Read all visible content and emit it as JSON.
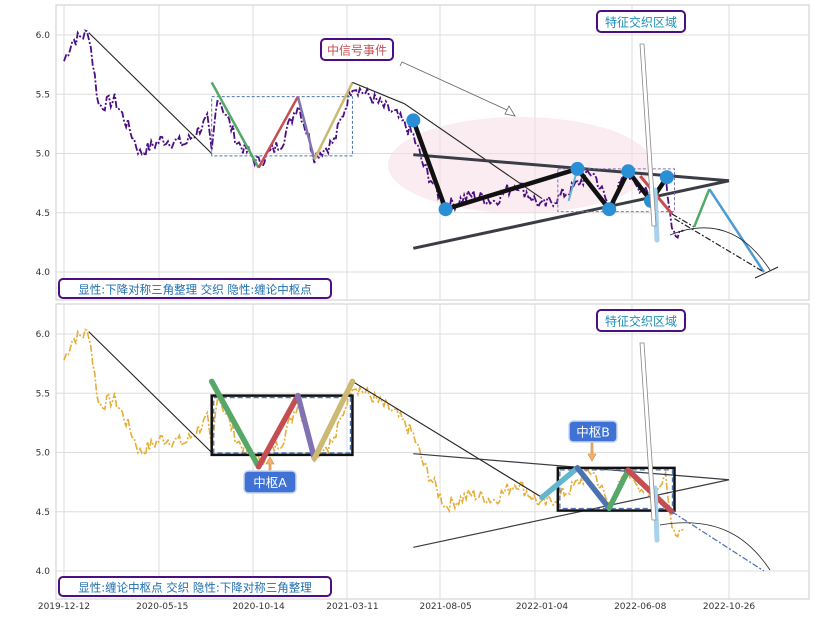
{
  "chart_data": [
    {
      "type": "line",
      "panel": "top",
      "ylim": [
        3.8,
        6.25
      ],
      "yticks": [
        "6.0",
        "5.5",
        "5.0",
        "4.5",
        "4.0"
      ],
      "grid": true,
      "series_colors": {
        "price": "#4b0f82"
      },
      "price_keypoints": [
        [
          "2019-12-12",
          5.78
        ],
        [
          "2019-12-25",
          5.95
        ],
        [
          "2020-01-20",
          6.02
        ],
        [
          "2020-02-05",
          5.4
        ],
        [
          "2020-03-01",
          5.45
        ],
        [
          "2020-03-25",
          5.2
        ],
        [
          "2020-04-10",
          5.0
        ],
        [
          "2020-05-15",
          5.12
        ],
        [
          "2020-06-20",
          5.08
        ],
        [
          "2020-07-25",
          5.28
        ],
        [
          "2020-08-01",
          5.0
        ],
        [
          "2020-08-10",
          5.5
        ],
        [
          "2020-09-10",
          5.1
        ],
        [
          "2020-10-14",
          4.92
        ],
        [
          "2020-11-20",
          5.1
        ],
        [
          "2020-12-15",
          5.42
        ],
        [
          "2021-01-10",
          4.98
        ],
        [
          "2021-02-10",
          5.1
        ],
        [
          "2021-03-11",
          5.58
        ],
        [
          "2021-04-15",
          5.45
        ],
        [
          "2021-05-20",
          5.32
        ],
        [
          "2021-06-15",
          5.15
        ],
        [
          "2021-07-01",
          4.9
        ],
        [
          "2021-08-05",
          4.55
        ],
        [
          "2021-09-15",
          4.65
        ],
        [
          "2021-10-20",
          4.6
        ],
        [
          "2021-11-25",
          4.75
        ],
        [
          "2022-01-04",
          4.55
        ],
        [
          "2022-02-20",
          4.7
        ],
        [
          "2022-03-25",
          4.85
        ],
        [
          "2022-04-20",
          4.55
        ],
        [
          "2022-05-20",
          4.85
        ],
        [
          "2022-06-25",
          4.6
        ],
        [
          "2022-07-18",
          4.82
        ],
        [
          "2022-07-28",
          4.35
        ],
        [
          "2022-08-15",
          4.35
        ]
      ],
      "trend_line_down": [
        [
          "2020-01-20",
          6.02
        ],
        [
          "2020-08-01",
          5.0
        ]
      ],
      "zhongshu_box": {
        "x": [
          "2020-08-01",
          "2021-03-11"
        ],
        "y": [
          4.98,
          5.48
        ]
      },
      "colored_strokes": [
        {
          "color": "#55a868",
          "from": [
            "2020-08-01",
            5.6
          ],
          "to": [
            "2020-10-14",
            4.88
          ]
        },
        {
          "color": "#c44e52",
          "from": [
            "2020-10-14",
            4.88
          ],
          "to": [
            "2020-12-15",
            5.48
          ]
        },
        {
          "color": "#8172b2",
          "from": [
            "2020-12-15",
            5.48
          ],
          "to": [
            "2021-01-10",
            4.95
          ]
        },
        {
          "color": "#ccb974",
          "from": [
            "2021-01-10",
            4.95
          ],
          "to": [
            "2021-03-11",
            5.6
          ]
        }
      ],
      "trend_line_2": [
        [
          "2021-03-11",
          5.6
        ],
        [
          "2021-06-01",
          5.42
        ]
      ],
      "triangle_upper": [
        [
          "2021-06-15",
          4.99
        ],
        [
          "2022-10-26",
          4.77
        ]
      ],
      "triangle_lower": [
        [
          "2021-06-15",
          4.2
        ],
        [
          "2022-10-26",
          4.77
        ]
      ],
      "zigzag_points": [
        [
          "2021-06-15",
          5.28
        ],
        [
          "2021-08-05",
          4.53
        ],
        [
          "2022-03-01",
          4.87
        ],
        [
          "2022-04-20",
          4.53
        ],
        [
          "2022-05-20",
          4.85
        ],
        [
          "2022-06-25",
          4.6
        ],
        [
          "2022-07-20",
          4.8
        ]
      ],
      "projection": [
        [
          "2022-07-28",
          4.49
        ],
        [
          "2022-09-01",
          4.38
        ],
        [
          "2022-09-25",
          4.7
        ],
        [
          "2022-12-20",
          4.0
        ]
      ],
      "annotations": [
        "中信号事件",
        "特征交织区域"
      ],
      "caption": "显性:下降对称三角整理 交织 隐性:缠论中枢点"
    },
    {
      "type": "line",
      "panel": "bottom",
      "ylim": [
        3.8,
        6.25
      ],
      "yticks": [
        "6.0",
        "5.5",
        "5.0",
        "4.5",
        "4.0"
      ],
      "xticks": [
        "2019-12-12",
        "2020-05-15",
        "2020-10-14",
        "2021-03-11",
        "2021-08-05",
        "2022-01-04",
        "2022-06-08",
        "2022-10-26"
      ],
      "grid": true,
      "series_colors": {
        "price": "#e5ae38"
      },
      "zhongshu_A": {
        "label": "中枢A",
        "x": [
          "2020-08-01",
          "2021-03-11"
        ],
        "y": [
          4.98,
          5.48
        ]
      },
      "zhongshu_B": {
        "label": "中枢B",
        "x": [
          "2022-01-29",
          "2022-08-01"
        ],
        "y": [
          4.51,
          4.87
        ]
      },
      "colored_strokes": [
        {
          "color": "#55a868",
          "from": [
            "2020-08-01",
            5.6
          ],
          "to": [
            "2020-10-14",
            4.88
          ]
        },
        {
          "color": "#c44e52",
          "from": [
            "2020-10-14",
            4.88
          ],
          "to": [
            "2020-12-15",
            5.48
          ]
        },
        {
          "color": "#8172b2",
          "from": [
            "2020-12-15",
            5.48
          ],
          "to": [
            "2021-01-10",
            4.95
          ]
        },
        {
          "color": "#ccb974",
          "from": [
            "2021-01-10",
            4.95
          ],
          "to": [
            "2021-03-11",
            5.6
          ]
        },
        {
          "color": "#64b5cd",
          "from": [
            "2022-01-04",
            4.62
          ],
          "to": [
            "2022-03-01",
            4.87
          ]
        },
        {
          "color": "#4c72b0",
          "from": [
            "2022-03-01",
            4.87
          ],
          "to": [
            "2022-04-20",
            4.53
          ]
        },
        {
          "color": "#55a868",
          "from": [
            "2022-04-20",
            4.53
          ],
          "to": [
            "2022-05-20",
            4.85
          ]
        },
        {
          "color": "#c44e52",
          "from": [
            "2022-05-20",
            4.85
          ],
          "to": [
            "2022-07-28",
            4.5
          ]
        }
      ],
      "annotations": [
        "中枢A",
        "中枢B",
        "特征交织区域"
      ],
      "caption": "显性:缠论中枢点 交织 隐性:下降对称三角整理"
    }
  ]
}
